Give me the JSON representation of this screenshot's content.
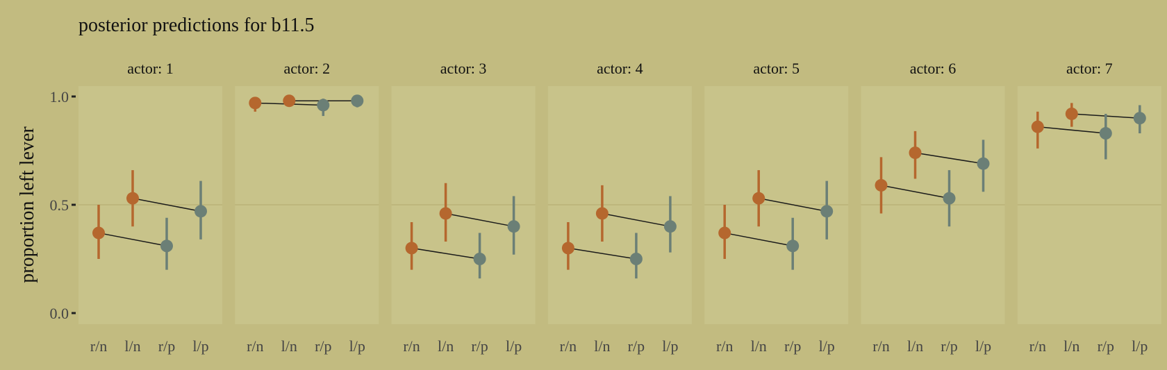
{
  "chart_data": {
    "type": "scatter",
    "title": "posterior predictions for b11.5",
    "ylabel": "proportion left lever",
    "xlabel": "",
    "ylim": [
      0,
      1
    ],
    "yticks": [
      "0.0",
      "0.5",
      "1.0"
    ],
    "ytick_values": [
      0,
      0.5,
      1
    ],
    "grid": true,
    "categories": [
      "r/n",
      "l/n",
      "r/p",
      "l/p"
    ],
    "colors": {
      "background": "#c2bb80",
      "panel": "#c8c38a",
      "gridline": "#bdb67c",
      "no_partner": "#b5672e",
      "partner": "#6b7f76",
      "line": "#1a1a1a"
    },
    "panels": [
      {
        "label": "actor: 1",
        "points": [
          {
            "x": "r/n",
            "y": 0.37,
            "low": 0.25,
            "high": 0.5
          },
          {
            "x": "l/n",
            "y": 0.53,
            "low": 0.4,
            "high": 0.66
          },
          {
            "x": "r/p",
            "y": 0.31,
            "low": 0.2,
            "high": 0.44
          },
          {
            "x": "l/p",
            "y": 0.47,
            "low": 0.34,
            "high": 0.61
          }
        ]
      },
      {
        "label": "actor: 2",
        "points": [
          {
            "x": "r/n",
            "y": 0.97,
            "low": 0.93,
            "high": 0.99
          },
          {
            "x": "l/n",
            "y": 0.98,
            "low": 0.96,
            "high": 0.99
          },
          {
            "x": "r/p",
            "y": 0.96,
            "low": 0.91,
            "high": 0.99
          },
          {
            "x": "l/p",
            "y": 0.98,
            "low": 0.95,
            "high": 0.99
          }
        ]
      },
      {
        "label": "actor: 3",
        "points": [
          {
            "x": "r/n",
            "y": 0.3,
            "low": 0.2,
            "high": 0.42
          },
          {
            "x": "l/n",
            "y": 0.46,
            "low": 0.33,
            "high": 0.6
          },
          {
            "x": "r/p",
            "y": 0.25,
            "low": 0.16,
            "high": 0.37
          },
          {
            "x": "l/p",
            "y": 0.4,
            "low": 0.27,
            "high": 0.54
          }
        ]
      },
      {
        "label": "actor: 4",
        "points": [
          {
            "x": "r/n",
            "y": 0.3,
            "low": 0.2,
            "high": 0.42
          },
          {
            "x": "l/n",
            "y": 0.46,
            "low": 0.33,
            "high": 0.59
          },
          {
            "x": "r/p",
            "y": 0.25,
            "low": 0.16,
            "high": 0.37
          },
          {
            "x": "l/p",
            "y": 0.4,
            "low": 0.28,
            "high": 0.54
          }
        ]
      },
      {
        "label": "actor: 5",
        "points": [
          {
            "x": "r/n",
            "y": 0.37,
            "low": 0.25,
            "high": 0.5
          },
          {
            "x": "l/n",
            "y": 0.53,
            "low": 0.4,
            "high": 0.66
          },
          {
            "x": "r/p",
            "y": 0.31,
            "low": 0.2,
            "high": 0.44
          },
          {
            "x": "l/p",
            "y": 0.47,
            "low": 0.34,
            "high": 0.61
          }
        ]
      },
      {
        "label": "actor: 6",
        "points": [
          {
            "x": "r/n",
            "y": 0.59,
            "low": 0.46,
            "high": 0.72
          },
          {
            "x": "l/n",
            "y": 0.74,
            "low": 0.62,
            "high": 0.84
          },
          {
            "x": "r/p",
            "y": 0.53,
            "low": 0.4,
            "high": 0.66
          },
          {
            "x": "l/p",
            "y": 0.69,
            "low": 0.56,
            "high": 0.8
          }
        ]
      },
      {
        "label": "actor: 7",
        "points": [
          {
            "x": "r/n",
            "y": 0.86,
            "low": 0.76,
            "high": 0.93
          },
          {
            "x": "l/n",
            "y": 0.92,
            "low": 0.86,
            "high": 0.97
          },
          {
            "x": "r/p",
            "y": 0.83,
            "low": 0.71,
            "high": 0.92
          },
          {
            "x": "l/p",
            "y": 0.9,
            "low": 0.83,
            "high": 0.96
          }
        ]
      }
    ]
  }
}
